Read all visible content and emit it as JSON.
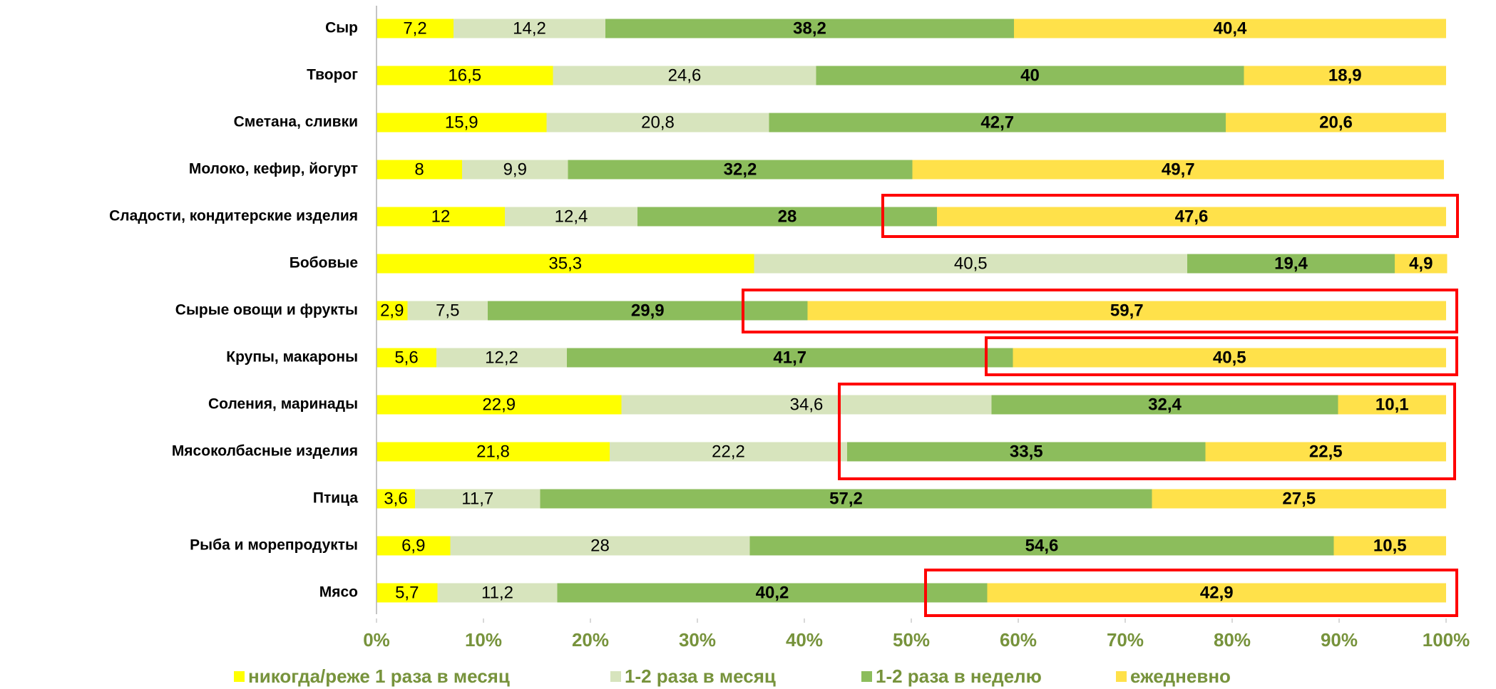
{
  "chart_data": {
    "type": "stacked-bar-horizontal",
    "categories": [
      "Сыр",
      "Творог",
      "Сметана, сливки",
      "Молоко, кефир, йогурт",
      "Сладости, кондитерские изделия",
      "Бобовые",
      "Сырые овощи и фрукты",
      "Крупы, макароны",
      "Соления, маринады",
      "Мясоколбасные изделия",
      "Птица",
      "Рыба и морепродукты",
      "Мясо"
    ],
    "series": [
      {
        "name": "никогда/реже 1 раза в месяц",
        "color": "#ffff00",
        "bold": false,
        "values": [
          7.2,
          16.5,
          15.9,
          8,
          12,
          35.3,
          2.9,
          5.6,
          22.9,
          21.8,
          3.6,
          6.9,
          5.7
        ],
        "value_labels": [
          "7,2",
          "16,5",
          "15,9",
          "8",
          "12",
          "35,3",
          "2,9",
          "5,6",
          "22,9",
          "21,8",
          "3,6",
          "6,9",
          "5,7"
        ]
      },
      {
        "name": "1-2 раза в месяц",
        "color": "#d7e4bd",
        "bold": false,
        "values": [
          14.2,
          24.6,
          20.8,
          9.9,
          12.4,
          40.5,
          7.5,
          12.2,
          34.6,
          22.2,
          11.7,
          28,
          11.2
        ],
        "value_labels": [
          "14,2",
          "24,6",
          "20,8",
          "9,9",
          "12,4",
          "40,5",
          "7,5",
          "12,2",
          "34,6",
          "22,2",
          "11,7",
          "28",
          "11,2"
        ]
      },
      {
        "name": "1-2 раза в неделю",
        "color": "#8cbd5c",
        "bold": true,
        "values": [
          38.2,
          40,
          42.7,
          32.2,
          28,
          19.4,
          29.9,
          41.7,
          32.4,
          33.5,
          57.2,
          54.6,
          40.2
        ],
        "value_labels": [
          "38,2",
          "40",
          "42,7",
          "32,2",
          "28",
          "19,4",
          "29,9",
          "41,7",
          "32,4",
          "33,5",
          "57,2",
          "54,6",
          "40,2"
        ]
      },
      {
        "name": "ежедневно",
        "color": "#ffe14a",
        "bold": true,
        "values": [
          40.4,
          18.9,
          20.6,
          49.7,
          47.6,
          4.9,
          59.7,
          40.5,
          10.1,
          22.5,
          27.5,
          10.5,
          42.9
        ],
        "value_labels": [
          "40,4",
          "18,9",
          "20,6",
          "49,7",
          "47,6",
          "4,9",
          "59,7",
          "40,5",
          "10,1",
          "22,5",
          "27,5",
          "10,5",
          "42,9"
        ]
      }
    ],
    "xlim": [
      0,
      100
    ],
    "xticks": [
      {
        "value": 0,
        "label": "0%"
      },
      {
        "value": 10,
        "label": "10%"
      },
      {
        "value": 20,
        "label": "20%"
      },
      {
        "value": 30,
        "label": "30%"
      },
      {
        "value": 40,
        "label": "40%"
      },
      {
        "value": 50,
        "label": "50%"
      },
      {
        "value": 60,
        "label": "60%"
      },
      {
        "value": 70,
        "label": "70%"
      },
      {
        "value": 80,
        "label": "80%"
      },
      {
        "value": 90,
        "label": "90%"
      },
      {
        "value": 100,
        "label": "100%"
      }
    ],
    "legend": "bottom"
  }
}
